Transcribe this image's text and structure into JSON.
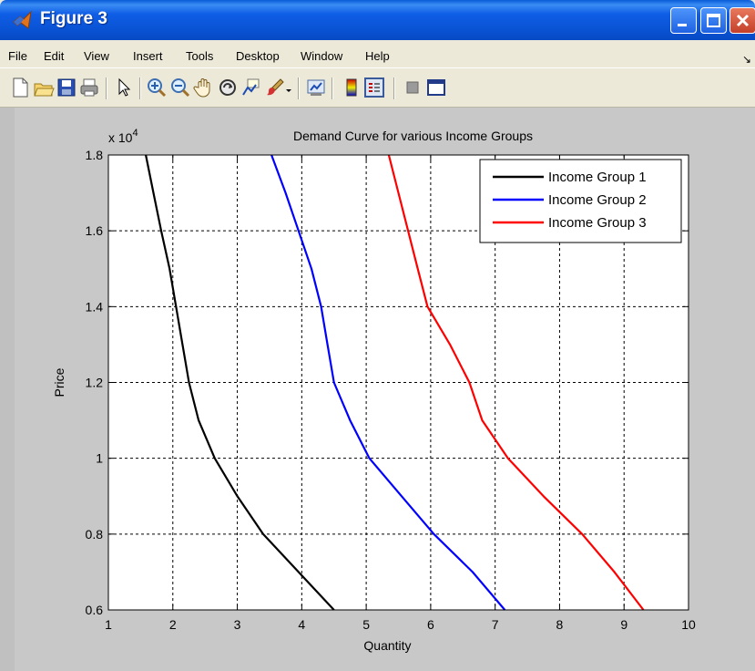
{
  "window": {
    "title": "Figure 3",
    "menus": [
      "File",
      "Edit",
      "View",
      "Insert",
      "Tools",
      "Desktop",
      "Window",
      "Help"
    ],
    "menu_overflow": "↘",
    "toolbar_icons": [
      "new-figure-icon",
      "open-file-icon",
      "save-icon",
      "print-icon",
      "pointer-icon",
      "zoom-in-icon",
      "zoom-out-icon",
      "pan-hand-icon",
      "rotate-3d-icon",
      "data-cursor-icon",
      "brush-icon",
      "link-plot-icon",
      "colorbar-icon",
      "legend-icon",
      "hide-plot-tools-icon",
      "show-plot-tools-icon"
    ]
  },
  "chart_data": {
    "type": "line",
    "title": "Demand Curve for various Income Groups",
    "xlabel": "Quantity",
    "ylabel": "Price",
    "y_exponent_label": "x 10",
    "y_exponent_power": "4",
    "xlim": [
      1,
      10
    ],
    "ylim": [
      0.6,
      1.8
    ],
    "xticks": [
      "1",
      "2",
      "3",
      "4",
      "5",
      "6",
      "7",
      "8",
      "9",
      "10"
    ],
    "yticks": [
      "0.6",
      "0.8",
      "1",
      "1.2",
      "1.4",
      "1.6",
      "1.8"
    ],
    "grid": true,
    "legend_position": "top-right",
    "series": [
      {
        "name": "Income Group 1",
        "color": "#000000",
        "points": [
          [
            1.58,
            1.8
          ],
          [
            1.7,
            1.7
          ],
          [
            1.82,
            1.6
          ],
          [
            1.95,
            1.5
          ],
          [
            2.05,
            1.4
          ],
          [
            2.15,
            1.3
          ],
          [
            2.25,
            1.2
          ],
          [
            2.4,
            1.1
          ],
          [
            2.65,
            1.0
          ],
          [
            3.0,
            0.9
          ],
          [
            3.4,
            0.8
          ],
          [
            3.95,
            0.7
          ],
          [
            4.5,
            0.6
          ]
        ]
      },
      {
        "name": "Income Group 2",
        "color": "#0000ff",
        "points": [
          [
            3.53,
            1.8
          ],
          [
            3.75,
            1.7
          ],
          [
            3.95,
            1.6
          ],
          [
            4.15,
            1.5
          ],
          [
            4.3,
            1.4
          ],
          [
            4.4,
            1.3
          ],
          [
            4.5,
            1.2
          ],
          [
            4.75,
            1.1
          ],
          [
            5.05,
            1.0
          ],
          [
            5.55,
            0.9
          ],
          [
            6.05,
            0.8
          ],
          [
            6.65,
            0.7
          ],
          [
            7.15,
            0.6
          ]
        ]
      },
      {
        "name": "Income Group 3",
        "color": "#ff0000",
        "points": [
          [
            5.35,
            1.8
          ],
          [
            5.5,
            1.7
          ],
          [
            5.65,
            1.6
          ],
          [
            5.8,
            1.5
          ],
          [
            5.95,
            1.4
          ],
          [
            6.3,
            1.3
          ],
          [
            6.6,
            1.2
          ],
          [
            6.8,
            1.1
          ],
          [
            7.2,
            1.0
          ],
          [
            7.75,
            0.9
          ],
          [
            8.35,
            0.8
          ],
          [
            8.85,
            0.7
          ],
          [
            9.3,
            0.6
          ]
        ]
      }
    ]
  }
}
